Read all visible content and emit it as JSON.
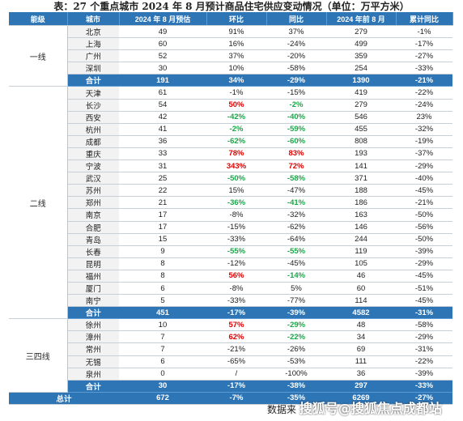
{
  "title": "表：27 个重点城市 2024 年 8 月预计商品住宅供应变动情况（单位：万平方米）",
  "headers": [
    "能级",
    "城市",
    "2024 年 8 月预估",
    "环比",
    "同比",
    "2024 年前 8 月",
    "累计同比"
  ],
  "groups": [
    {
      "tier": "一线",
      "rows": [
        {
          "city": "北京",
          "est": "49",
          "mom": "91%",
          "yoy": "37%",
          "ytd": "279",
          "cum": "-1%"
        },
        {
          "city": "上海",
          "est": "60",
          "mom": "16%",
          "yoy": "-24%",
          "ytd": "499",
          "cum": "-17%"
        },
        {
          "city": "广州",
          "est": "52",
          "mom": "37%",
          "yoy": "-20%",
          "ytd": "359",
          "cum": "-27%"
        },
        {
          "city": "深圳",
          "est": "30",
          "mom": "10%",
          "yoy": "-58%",
          "ytd": "254",
          "cum": "-33%"
        }
      ],
      "total": {
        "label": "合计",
        "est": "191",
        "mom": "34%",
        "yoy": "-29%",
        "ytd": "1390",
        "cum": "-21%"
      }
    },
    {
      "tier": "二线",
      "rows": [
        {
          "city": "天津",
          "est": "61",
          "mom": "-1%",
          "yoy": "-15%",
          "ytd": "419",
          "cum": "-22%"
        },
        {
          "city": "长沙",
          "est": "54",
          "mom": "50%",
          "mom_color": "red",
          "yoy": "-2%",
          "yoy_color": "green",
          "ytd": "279",
          "cum": "-24%"
        },
        {
          "city": "西安",
          "est": "42",
          "mom": "-42%",
          "mom_color": "green",
          "yoy": "-40%",
          "yoy_color": "green",
          "ytd": "546",
          "cum": "23%"
        },
        {
          "city": "杭州",
          "est": "41",
          "mom": "-2%",
          "mom_color": "green",
          "yoy": "-59%",
          "yoy_color": "green",
          "ytd": "455",
          "cum": "-32%"
        },
        {
          "city": "成都",
          "est": "36",
          "mom": "-62%",
          "mom_color": "green",
          "yoy": "-60%",
          "yoy_color": "green",
          "ytd": "808",
          "cum": "-19%"
        },
        {
          "city": "重庆",
          "est": "33",
          "mom": "78%",
          "mom_color": "red",
          "yoy": "83%",
          "yoy_color": "red",
          "ytd": "193",
          "cum": "-37%"
        },
        {
          "city": "宁波",
          "est": "31",
          "mom": "343%",
          "mom_color": "red",
          "yoy": "72%",
          "yoy_color": "red",
          "ytd": "141",
          "cum": "-29%"
        },
        {
          "city": "武汉",
          "est": "25",
          "mom": "-50%",
          "mom_color": "green",
          "yoy": "-58%",
          "yoy_color": "green",
          "ytd": "371",
          "cum": "-40%"
        },
        {
          "city": "苏州",
          "est": "22",
          "mom": "15%",
          "yoy": "-47%",
          "ytd": "188",
          "cum": "-45%"
        },
        {
          "city": "郑州",
          "est": "21",
          "mom": "-36%",
          "mom_color": "green",
          "yoy": "-41%",
          "yoy_color": "green",
          "ytd": "186",
          "cum": "-21%"
        },
        {
          "city": "南京",
          "est": "17",
          "mom": "-8%",
          "yoy": "-32%",
          "ytd": "163",
          "cum": "-50%"
        },
        {
          "city": "合肥",
          "est": "17",
          "mom": "-15%",
          "yoy": "-62%",
          "ytd": "146",
          "cum": "-56%"
        },
        {
          "city": "青岛",
          "est": "15",
          "mom": "-33%",
          "yoy": "-64%",
          "ytd": "244",
          "cum": "-50%"
        },
        {
          "city": "长春",
          "est": "9",
          "mom": "-55%",
          "mom_color": "green",
          "yoy": "-55%",
          "yoy_color": "green",
          "ytd": "119",
          "cum": "-39%"
        },
        {
          "city": "昆明",
          "est": "8",
          "mom": "-12%",
          "yoy": "-45%",
          "ytd": "105",
          "cum": "-29%"
        },
        {
          "city": "福州",
          "est": "8",
          "mom": "56%",
          "mom_color": "red",
          "yoy": "-14%",
          "yoy_color": "green",
          "ytd": "46",
          "cum": "-45%"
        },
        {
          "city": "厦门",
          "est": "6",
          "mom": "-8%",
          "yoy": "5%",
          "ytd": "60",
          "cum": "-51%"
        },
        {
          "city": "南宁",
          "est": "5",
          "mom": "-33%",
          "yoy": "-77%",
          "ytd": "114",
          "cum": "-45%"
        }
      ],
      "total": {
        "label": "合计",
        "est": "451",
        "mom": "-17%",
        "yoy": "-39%",
        "ytd": "4582",
        "cum": "-31%"
      }
    },
    {
      "tier": "三四线",
      "rows": [
        {
          "city": "徐州",
          "est": "10",
          "mom": "57%",
          "mom_color": "red",
          "yoy": "-29%",
          "yoy_color": "green",
          "ytd": "48",
          "cum": "-58%"
        },
        {
          "city": "漳州",
          "est": "7",
          "mom": "62%",
          "mom_color": "red",
          "yoy": "-22%",
          "yoy_color": "green",
          "ytd": "34",
          "cum": "-29%"
        },
        {
          "city": "常州",
          "est": "7",
          "mom": "-21%",
          "yoy": "-26%",
          "ytd": "69",
          "cum": "-31%"
        },
        {
          "city": "无锡",
          "est": "6",
          "mom": "-65%",
          "yoy": "-53%",
          "ytd": "111",
          "cum": "-22%"
        },
        {
          "city": "泉州",
          "est": "0",
          "mom": "/",
          "yoy": "-100%",
          "ytd": "36",
          "cum": "-39%"
        }
      ],
      "total": {
        "label": "合计",
        "est": "30",
        "mom": "-17%",
        "yoy": "-38%",
        "ytd": "297",
        "cum": "-33%"
      }
    }
  ],
  "grand_total": {
    "label": "总计",
    "est": "672",
    "mom": "-7%",
    "yoy": "-35%",
    "ytd": "6269",
    "cum": "-27%"
  },
  "source": {
    "label": "数据来",
    "watermark": "搜狐号@搜狐焦点成都站"
  },
  "colors": {
    "header_bg": "#2e75b6",
    "city_bg": "#f2f2f2",
    "increase": "#e00000",
    "decrease": "#18a847"
  }
}
